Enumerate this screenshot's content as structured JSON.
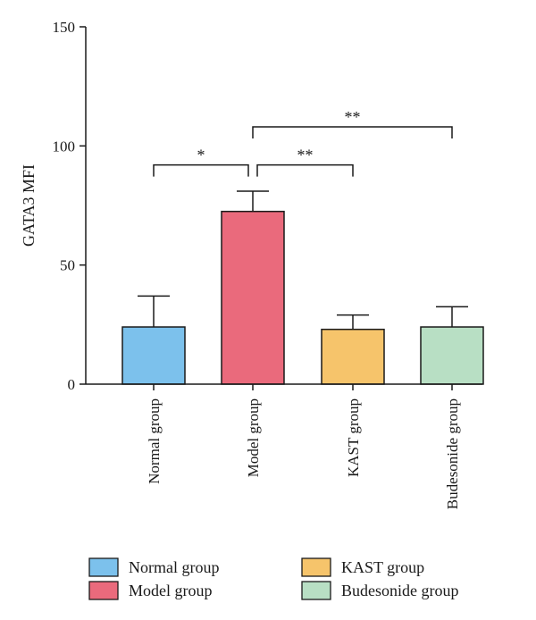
{
  "chart_data": {
    "type": "bar",
    "title": "",
    "xlabel": "",
    "ylabel": "GATA3 MFI",
    "ylim": [
      0,
      150
    ],
    "yticks": [
      0,
      50,
      100,
      150
    ],
    "grid": false,
    "categories": [
      "Normal group",
      "Model group",
      "KAST group",
      "Budesonide group"
    ],
    "values": [
      24,
      72.5,
      23,
      24
    ],
    "error_upper": [
      37,
      81,
      29,
      32.5
    ],
    "colors": [
      "#7cc1ec",
      "#ea6a7c",
      "#f6c46b",
      "#b8dfc4"
    ],
    "significance": [
      {
        "from": 0,
        "to": 1,
        "y": 92,
        "label": "*"
      },
      {
        "from": 1,
        "to": 2,
        "y": 92,
        "label": "**"
      },
      {
        "from": 1,
        "to": 3,
        "y": 108,
        "label": "**"
      }
    ],
    "legend": {
      "placement": "bottom",
      "entries": [
        "Normal group",
        "Model group",
        "KAST group",
        "Budesonide group"
      ]
    }
  }
}
